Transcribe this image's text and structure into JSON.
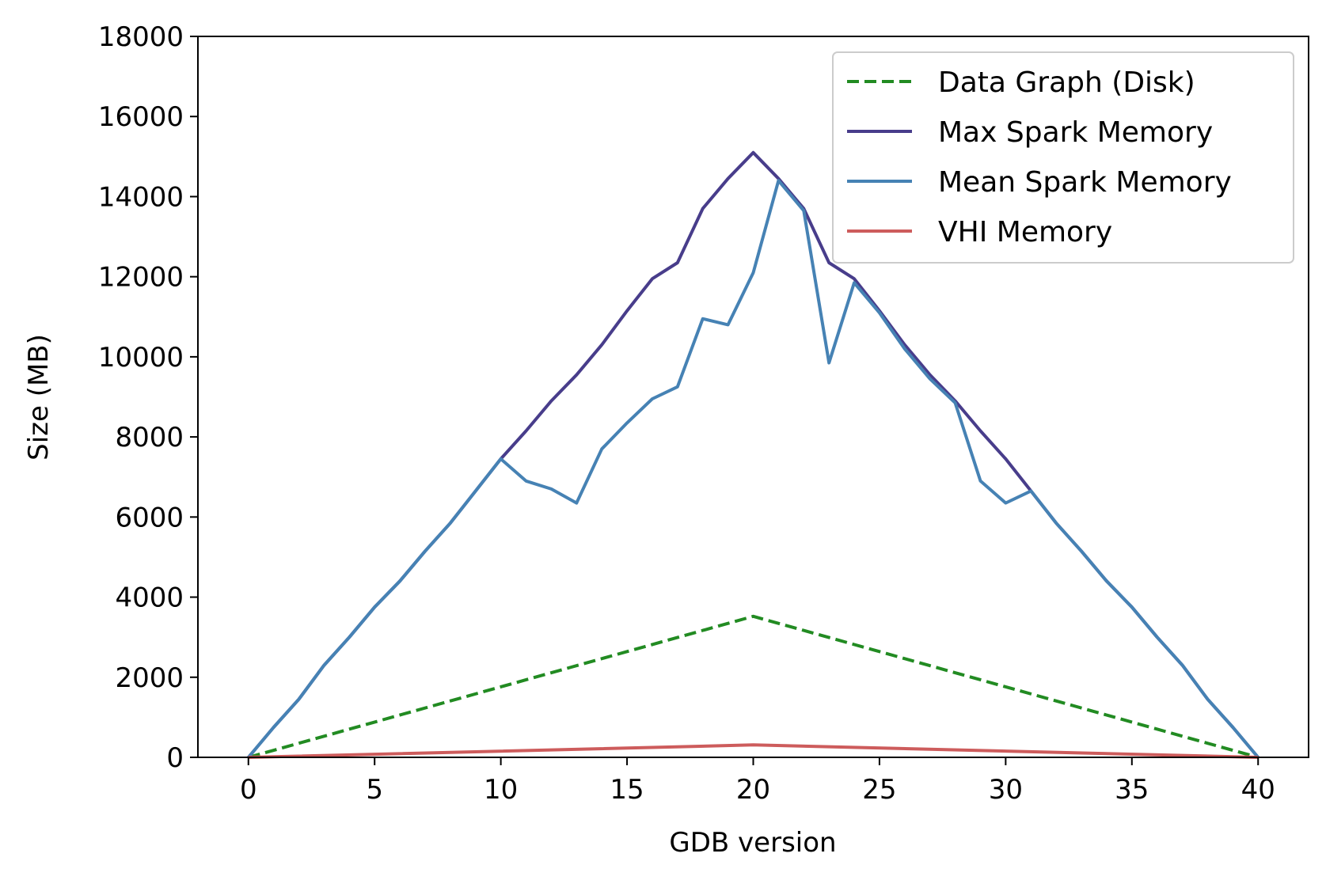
{
  "chart_data": {
    "type": "line",
    "title": "",
    "xlabel": "GDB version",
    "ylabel": "Size (MB)",
    "xlim": [
      -2,
      42
    ],
    "ylim": [
      0,
      18000
    ],
    "xticks": [
      0,
      5,
      10,
      15,
      20,
      25,
      30,
      35,
      40
    ],
    "yticks": [
      0,
      2000,
      4000,
      6000,
      8000,
      10000,
      12000,
      14000,
      16000,
      18000
    ],
    "grid": false,
    "legend_position": "top-right",
    "series": [
      {
        "name": "Data Graph (Disk)",
        "color": "#228b22",
        "style": "dashed",
        "x": [
          0,
          20,
          40
        ],
        "y": [
          0,
          3520,
          0
        ]
      },
      {
        "name": "Max Spark Memory",
        "color": "#483d8b",
        "style": "solid",
        "x": [
          0,
          1,
          2,
          3,
          4,
          5,
          6,
          7,
          8,
          9,
          10,
          11,
          12,
          13,
          14,
          15,
          16,
          17,
          18,
          19,
          20,
          21,
          22,
          23,
          24,
          25,
          26,
          27,
          28,
          29,
          30,
          31,
          32,
          33,
          34,
          35,
          36,
          37,
          38,
          39,
          40
        ],
        "y": [
          0,
          750,
          1450,
          2300,
          3000,
          3750,
          4400,
          5150,
          5850,
          6650,
          7450,
          8150,
          8900,
          9550,
          10300,
          11150,
          11950,
          12350,
          13700,
          14450,
          15100,
          14450,
          13700,
          12350,
          11950,
          11150,
          10300,
          9550,
          8900,
          8150,
          7450,
          6650,
          5850,
          5150,
          4400,
          3750,
          3000,
          2300,
          1450,
          750,
          0
        ]
      },
      {
        "name": "Mean Spark Memory",
        "color": "#4682b4",
        "style": "solid",
        "x": [
          0,
          1,
          2,
          3,
          4,
          5,
          6,
          7,
          8,
          9,
          10,
          11,
          12,
          13,
          14,
          15,
          16,
          17,
          18,
          19,
          20,
          21,
          22,
          23,
          24,
          25,
          26,
          27,
          28,
          29,
          30,
          31,
          32,
          33,
          34,
          35,
          36,
          37,
          38,
          39,
          40
        ],
        "y": [
          0,
          750,
          1450,
          2300,
          3000,
          3750,
          4400,
          5150,
          5850,
          6650,
          7450,
          6900,
          6700,
          6350,
          7700,
          8350,
          8950,
          9250,
          10950,
          10800,
          12100,
          14400,
          13650,
          9850,
          11850,
          11100,
          10200,
          9450,
          8850,
          6900,
          6350,
          6650,
          5850,
          5150,
          4400,
          3750,
          3000,
          2300,
          1450,
          750,
          0
        ]
      },
      {
        "name": "VHI Memory",
        "color": "#cd5c5c",
        "style": "solid",
        "x": [
          0,
          20,
          40
        ],
        "y": [
          0,
          310,
          0
        ]
      }
    ]
  }
}
